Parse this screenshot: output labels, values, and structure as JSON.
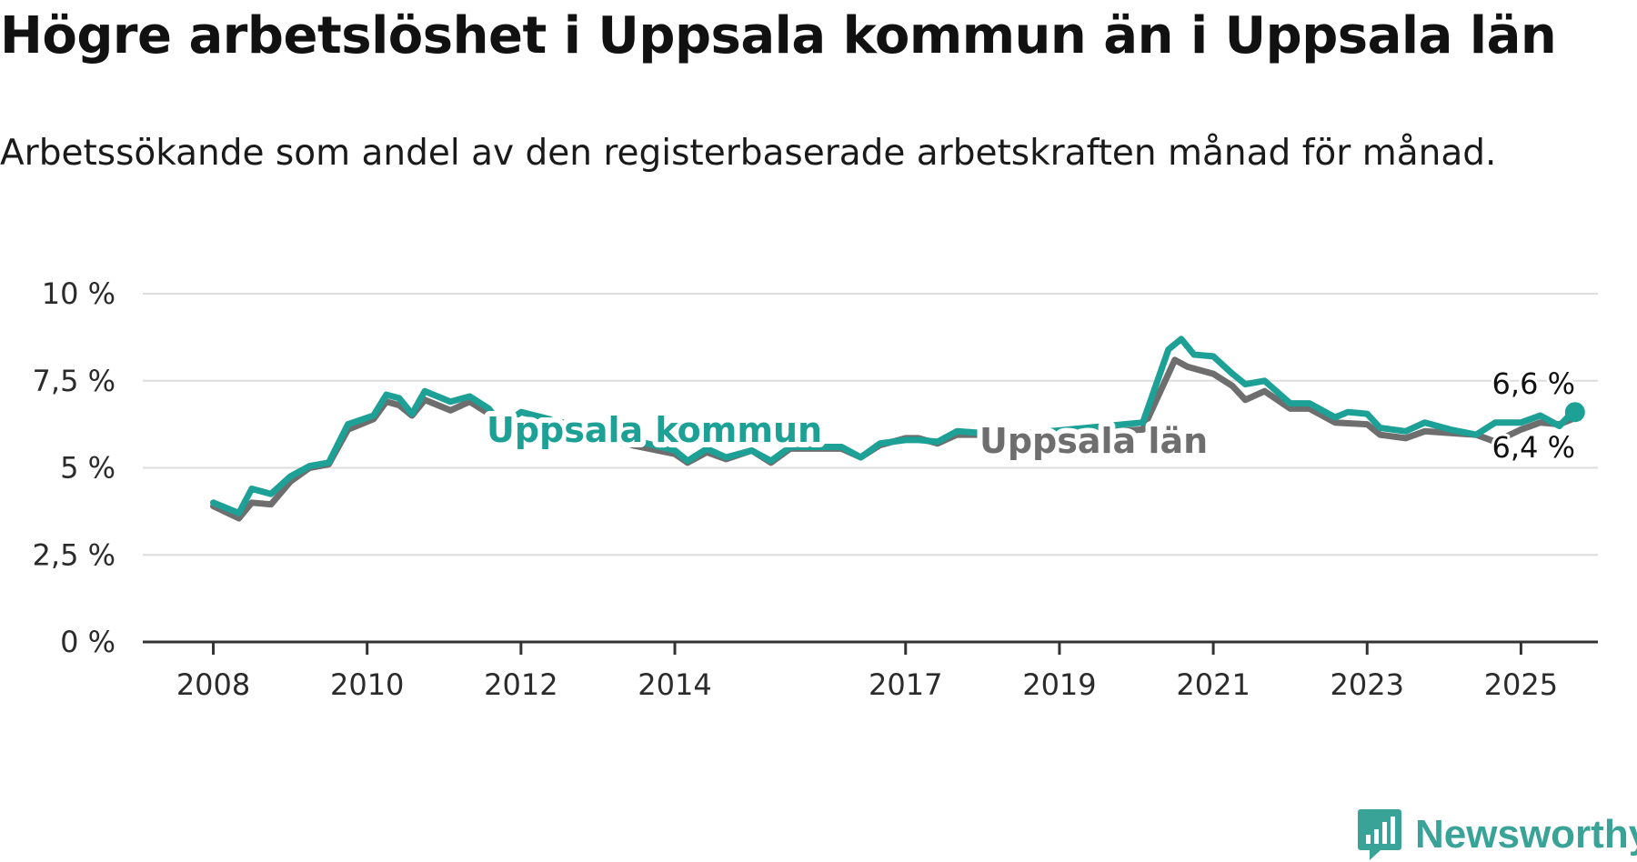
{
  "header": {
    "title": "Högre arbetslöshet i Uppsala kommun än i Uppsala län",
    "subtitle": "Arbetssökande som andel av den registerbaserade arbetskraften månad för månad."
  },
  "brand": {
    "name": "Newsworthy",
    "icon": "newsworthy-logo-icon",
    "color": "#3aa398"
  },
  "chart_data": {
    "type": "line",
    "title": "Högre arbetslöshet i Uppsala kommun än i Uppsala län",
    "subtitle": "Arbetssökande som andel av den registerbaserade arbetskraften månad för månad.",
    "xlabel": "",
    "ylabel": "",
    "x_ticks": [
      "2008",
      "2010",
      "2012",
      "2014",
      "2017",
      "2019",
      "2021",
      "2023",
      "2025"
    ],
    "y_ticks": [
      "0 %",
      "2,5 %",
      "5 %",
      "7,5 %",
      "10 %"
    ],
    "ylim": [
      0,
      10
    ],
    "xlim": [
      "2007-02",
      "2026-01"
    ],
    "grid": true,
    "series": [
      {
        "name": "Uppsala län",
        "color": "#6e6e6e",
        "end_label": "6,4 %",
        "points": [
          [
            "2008-01",
            3.9
          ],
          [
            "2008-05",
            3.55
          ],
          [
            "2008-07",
            4.0
          ],
          [
            "2008-10",
            3.95
          ],
          [
            "2009-01",
            4.6
          ],
          [
            "2009-04",
            5.0
          ],
          [
            "2009-07",
            5.1
          ],
          [
            "2009-10",
            6.1
          ],
          [
            "2010-02",
            6.4
          ],
          [
            "2010-04",
            6.9
          ],
          [
            "2010-06",
            6.8
          ],
          [
            "2010-08",
            6.5
          ],
          [
            "2010-10",
            6.95
          ],
          [
            "2011-02",
            6.65
          ],
          [
            "2011-05",
            6.9
          ],
          [
            "2011-08",
            6.55
          ],
          [
            "2011-10",
            6.05
          ],
          [
            "2012-01",
            6.3
          ],
          [
            "2014-01",
            5.4
          ],
          [
            "2014-03",
            5.15
          ],
          [
            "2014-06",
            5.45
          ],
          [
            "2014-09",
            5.25
          ],
          [
            "2015-01",
            5.5
          ],
          [
            "2015-04",
            5.15
          ],
          [
            "2015-07",
            5.55
          ],
          [
            "2016-01",
            5.55
          ],
          [
            "2016-03",
            5.55
          ],
          [
            "2016-06",
            5.3
          ],
          [
            "2016-09",
            5.65
          ],
          [
            "2017-01",
            5.85
          ],
          [
            "2017-03",
            5.85
          ],
          [
            "2017-06",
            5.7
          ],
          [
            "2017-09",
            5.95
          ],
          [
            "2018-01",
            5.95
          ],
          [
            "2018-03",
            5.85
          ],
          [
            "2020-02",
            6.1
          ],
          [
            "2020-07",
            8.1
          ],
          [
            "2020-09",
            7.9
          ],
          [
            "2021-01",
            7.7
          ],
          [
            "2021-04",
            7.35
          ],
          [
            "2021-06",
            6.95
          ],
          [
            "2021-09",
            7.2
          ],
          [
            "2022-01",
            6.7
          ],
          [
            "2022-04",
            6.7
          ],
          [
            "2022-08",
            6.3
          ],
          [
            "2023-01",
            6.25
          ],
          [
            "2023-03",
            5.95
          ],
          [
            "2023-07",
            5.85
          ],
          [
            "2023-10",
            6.05
          ],
          [
            "2024-02",
            6.0
          ],
          [
            "2024-06",
            5.95
          ],
          [
            "2024-09",
            5.75
          ],
          [
            "2025-01",
            6.1
          ],
          [
            "2025-04",
            6.3
          ],
          [
            "2025-07",
            6.25
          ],
          [
            "2025-09",
            6.4
          ]
        ]
      },
      {
        "name": "Uppsala kommun",
        "color": "#1da196",
        "end_label": "6,6 %",
        "points": [
          [
            "2008-01",
            4.0
          ],
          [
            "2008-05",
            3.7
          ],
          [
            "2008-07",
            4.4
          ],
          [
            "2008-10",
            4.25
          ],
          [
            "2009-01",
            4.75
          ],
          [
            "2009-04",
            5.05
          ],
          [
            "2009-07",
            5.15
          ],
          [
            "2009-10",
            6.25
          ],
          [
            "2010-02",
            6.5
          ],
          [
            "2010-04",
            7.1
          ],
          [
            "2010-06",
            7.0
          ],
          [
            "2010-08",
            6.55
          ],
          [
            "2010-10",
            7.2
          ],
          [
            "2011-02",
            6.9
          ],
          [
            "2011-05",
            7.05
          ],
          [
            "2011-08",
            6.7
          ],
          [
            "2011-10",
            6.2
          ],
          [
            "2012-01",
            6.6
          ],
          [
            "2014-01",
            5.5
          ],
          [
            "2014-03",
            5.2
          ],
          [
            "2014-06",
            5.55
          ],
          [
            "2014-09",
            5.3
          ],
          [
            "2015-01",
            5.5
          ],
          [
            "2015-04",
            5.2
          ],
          [
            "2015-07",
            5.6
          ],
          [
            "2016-01",
            5.6
          ],
          [
            "2016-03",
            5.6
          ],
          [
            "2016-06",
            5.3
          ],
          [
            "2016-09",
            5.7
          ],
          [
            "2017-01",
            5.8
          ],
          [
            "2017-03",
            5.8
          ],
          [
            "2017-06",
            5.75
          ],
          [
            "2017-09",
            6.05
          ],
          [
            "2018-01",
            6.0
          ],
          [
            "2018-03",
            5.9
          ],
          [
            "2020-02",
            6.3
          ],
          [
            "2020-06",
            8.4
          ],
          [
            "2020-08",
            8.7
          ],
          [
            "2020-10",
            8.25
          ],
          [
            "2021-01",
            8.2
          ],
          [
            "2021-04",
            7.7
          ],
          [
            "2021-06",
            7.4
          ],
          [
            "2021-09",
            7.5
          ],
          [
            "2022-01",
            6.85
          ],
          [
            "2022-04",
            6.85
          ],
          [
            "2022-08",
            6.45
          ],
          [
            "2022-10",
            6.6
          ],
          [
            "2023-01",
            6.55
          ],
          [
            "2023-03",
            6.15
          ],
          [
            "2023-07",
            6.05
          ],
          [
            "2023-10",
            6.3
          ],
          [
            "2024-02",
            6.1
          ],
          [
            "2024-06",
            5.95
          ],
          [
            "2024-09",
            6.3
          ],
          [
            "2025-01",
            6.3
          ],
          [
            "2025-04",
            6.5
          ],
          [
            "2025-07",
            6.2
          ],
          [
            "2025-09",
            6.6
          ]
        ]
      }
    ]
  }
}
